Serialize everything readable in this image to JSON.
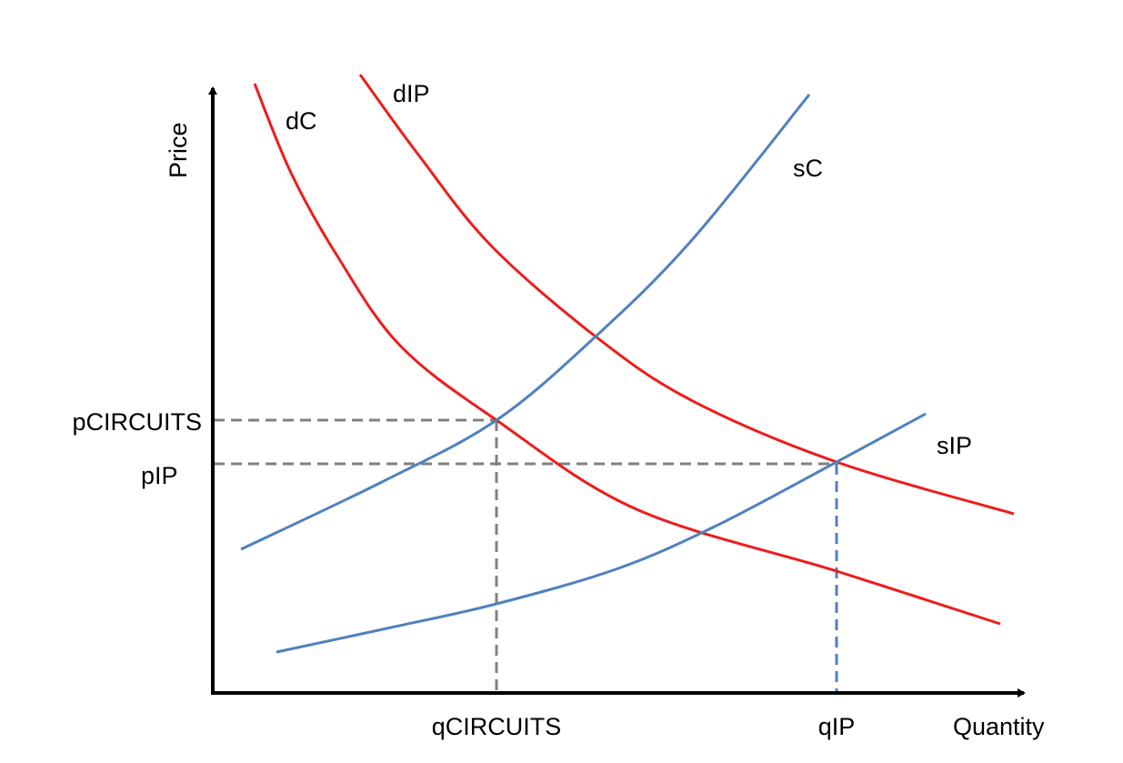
{
  "axes": {
    "y_label": "Price",
    "x_label": "Quantity"
  },
  "curves": {
    "demand_c": {
      "label": "dC",
      "color": "#ee1c1c"
    },
    "demand_ip": {
      "label": "dIP",
      "color": "#ee1c1c"
    },
    "supply_c": {
      "label": "sC",
      "color": "#4f81bd"
    },
    "supply_ip": {
      "label": "sIP",
      "color": "#4f81bd"
    }
  },
  "equilibria": {
    "circuits": {
      "price_label": "pCIRCUITS",
      "quantity_label": "qCIRCUITS"
    },
    "ip": {
      "price_label": "pIP",
      "quantity_label": "qIP"
    }
  },
  "colors": {
    "guide_gray": "#808080",
    "guide_blue": "#4f81bd",
    "axis": "#000000"
  }
}
